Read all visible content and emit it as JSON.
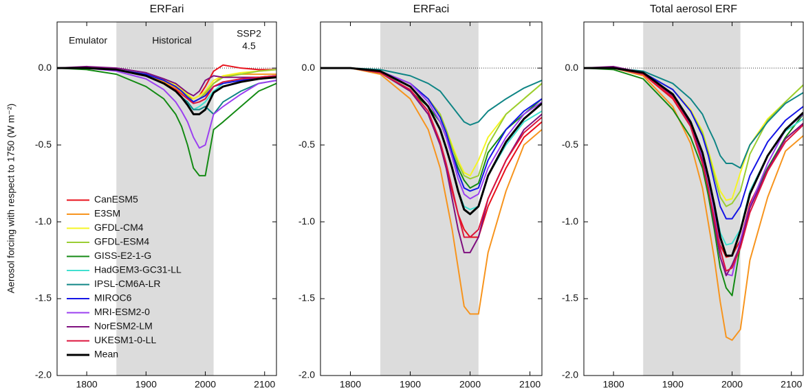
{
  "ylabel": "Aerosol forcing with respect to 1750 (W m⁻²)",
  "chart_data": [
    {
      "type": "line",
      "title": "ERFari",
      "legend": "lower left",
      "annotations": [
        "Emulator",
        "Historical",
        [
          "SSP2",
          "4.5"
        ]
      ],
      "shade": [
        1850,
        2014
      ],
      "xlim": [
        1750,
        2120
      ],
      "ylim": [
        -2.0,
        0.3
      ],
      "xticks": [
        1800,
        1900,
        2000,
        2100
      ],
      "yticks": [
        {
          "value": 0,
          "label": "0.0"
        },
        -0.5,
        {
          "value": -1,
          "label": "-1.0"
        },
        -1.5,
        {
          "value": -2,
          "label": "-2.0"
        }
      ],
      "x": [
        1750,
        1800,
        1850,
        1900,
        1930,
        1950,
        1960,
        1970,
        1980,
        1990,
        2000,
        2014,
        2030,
        2060,
        2090,
        2120
      ],
      "series": [
        {
          "name": "CanESM5",
          "color": "#e8111b",
          "values": [
            0,
            0,
            -0.01,
            -0.05,
            -0.08,
            -0.12,
            -0.15,
            -0.18,
            -0.2,
            -0.18,
            -0.12,
            -0.02,
            0.02,
            0,
            -0.01,
            -0.01
          ]
        },
        {
          "name": "E3SM",
          "color": "#f7941d",
          "values": [
            0,
            0,
            -0.01,
            -0.05,
            -0.09,
            -0.13,
            -0.16,
            -0.19,
            -0.22,
            -0.2,
            -0.17,
            -0.1,
            -0.05,
            -0.04,
            -0.04,
            -0.04
          ]
        },
        {
          "name": "GFDL-CM4",
          "color": "#f5f523",
          "values": [
            0,
            0,
            -0.01,
            -0.04,
            -0.07,
            -0.11,
            -0.14,
            -0.17,
            -0.2,
            -0.18,
            -0.15,
            -0.08,
            -0.05,
            -0.03,
            -0.02,
            -0.01
          ]
        },
        {
          "name": "GFDL-ESM4",
          "color": "#9acd32",
          "values": [
            0,
            0,
            -0.01,
            -0.04,
            -0.08,
            -0.12,
            -0.15,
            -0.18,
            -0.22,
            -0.2,
            -0.16,
            -0.1,
            -0.06,
            -0.04,
            -0.02,
            -0.01
          ]
        },
        {
          "name": "GISS-E2-1-G",
          "color": "#138a13",
          "values": [
            0,
            -0.01,
            -0.04,
            -0.12,
            -0.2,
            -0.3,
            -0.38,
            -0.5,
            -0.65,
            -0.7,
            -0.7,
            -0.4,
            -0.35,
            -0.25,
            -0.15,
            -0.1
          ]
        },
        {
          "name": "HadGEM3-GC31-LL",
          "color": "#40e0d0",
          "values": [
            0,
            0,
            -0.01,
            -0.05,
            -0.1,
            -0.15,
            -0.19,
            -0.23,
            -0.27,
            -0.25,
            -0.22,
            -0.15,
            -0.1,
            -0.07,
            -0.06,
            -0.05
          ]
        },
        {
          "name": "IPSL-CM6A-LR",
          "color": "#0f8585",
          "values": [
            0,
            0,
            -0.01,
            -0.05,
            -0.1,
            -0.15,
            -0.19,
            -0.22,
            -0.27,
            -0.27,
            -0.25,
            -0.3,
            -0.22,
            -0.15,
            -0.1,
            -0.08
          ]
        },
        {
          "name": "MIROC6",
          "color": "#1414e6",
          "values": [
            0,
            0,
            -0.01,
            -0.04,
            -0.08,
            -0.12,
            -0.15,
            -0.19,
            -0.22,
            -0.2,
            -0.18,
            -0.12,
            -0.1,
            -0.08,
            -0.06,
            -0.05
          ]
        },
        {
          "name": "MRI-ESM2-0",
          "color": "#9b3ff0",
          "values": [
            0,
            0,
            -0.02,
            -0.07,
            -0.14,
            -0.22,
            -0.28,
            -0.35,
            -0.45,
            -0.52,
            -0.5,
            -0.3,
            -0.25,
            -0.17,
            -0.1,
            -0.08
          ]
        },
        {
          "name": "NorESM2-LM",
          "color": "#7f0f7f",
          "values": [
            0,
            0.01,
            0,
            -0.03,
            -0.07,
            -0.1,
            -0.13,
            -0.16,
            -0.18,
            -0.15,
            -0.08,
            -0.05,
            -0.06,
            -0.06,
            -0.06,
            -0.06
          ]
        },
        {
          "name": "UKESM1-0-LL",
          "color": "#dc143c",
          "values": [
            0,
            0,
            -0.01,
            -0.05,
            -0.1,
            -0.14,
            -0.17,
            -0.2,
            -0.23,
            -0.22,
            -0.2,
            -0.12,
            -0.09,
            -0.07,
            -0.06,
            -0.05
          ]
        },
        {
          "name": "Mean",
          "color": "#000000",
          "values": [
            0,
            0,
            -0.01,
            -0.05,
            -0.1,
            -0.15,
            -0.19,
            -0.24,
            -0.3,
            -0.3,
            -0.27,
            -0.16,
            -0.12,
            -0.09,
            -0.07,
            -0.06
          ]
        }
      ]
    },
    {
      "type": "line",
      "title": "ERFaci",
      "shade": [
        1850,
        2014
      ],
      "xlim": [
        1750,
        2120
      ],
      "ylim": [
        -2.0,
        0.3
      ],
      "xticks": [
        1800,
        1900,
        2000,
        2100
      ],
      "yticks": [
        {
          "value": 0,
          "label": "0.0"
        },
        -0.5,
        {
          "value": -1,
          "label": "-1.0"
        },
        -1.5,
        {
          "value": -2,
          "label": "-2.0"
        }
      ],
      "x": [
        1750,
        1800,
        1850,
        1900,
        1930,
        1950,
        1960,
        1970,
        1980,
        1990,
        2000,
        2014,
        2030,
        2060,
        2090,
        2120
      ],
      "series": [
        {
          "name": "CanESM5",
          "color": "#e8111b",
          "values": [
            0,
            0,
            -0.03,
            -0.15,
            -0.3,
            -0.5,
            -0.65,
            -0.8,
            -0.95,
            -1.05,
            -1.1,
            -1.1,
            -0.9,
            -0.65,
            -0.45,
            -0.35
          ]
        },
        {
          "name": "E3SM",
          "color": "#f7941d",
          "values": [
            0,
            0,
            -0.04,
            -0.2,
            -0.4,
            -0.65,
            -0.85,
            -1.05,
            -1.3,
            -1.55,
            -1.6,
            -1.6,
            -1.2,
            -0.8,
            -0.5,
            -0.4
          ]
        },
        {
          "name": "GFDL-CM4",
          "color": "#f5f523",
          "values": [
            0,
            0,
            -0.02,
            -0.1,
            -0.2,
            -0.3,
            -0.4,
            -0.5,
            -0.6,
            -0.68,
            -0.7,
            -0.6,
            -0.45,
            -0.3,
            -0.2,
            -0.1
          ]
        },
        {
          "name": "GFDL-ESM4",
          "color": "#9acd32",
          "values": [
            0,
            0,
            -0.02,
            -0.1,
            -0.2,
            -0.3,
            -0.4,
            -0.52,
            -0.62,
            -0.7,
            -0.72,
            -0.7,
            -0.5,
            -0.3,
            -0.2,
            -0.1
          ]
        },
        {
          "name": "GISS-E2-1-G",
          "color": "#138a13",
          "values": [
            0,
            0,
            -0.03,
            -0.15,
            -0.25,
            -0.35,
            -0.45,
            -0.55,
            -0.65,
            -0.73,
            -0.78,
            -0.75,
            -0.55,
            -0.4,
            -0.3,
            -0.2
          ]
        },
        {
          "name": "HadGEM3-GC31-LL",
          "color": "#40e0d0",
          "values": [
            0,
            0,
            -0.03,
            -0.12,
            -0.25,
            -0.4,
            -0.52,
            -0.65,
            -0.8,
            -0.9,
            -0.92,
            -0.9,
            -0.7,
            -0.5,
            -0.35,
            -0.28
          ]
        },
        {
          "name": "IPSL-CM6A-LR",
          "color": "#0f8585",
          "values": [
            0,
            0,
            -0.01,
            -0.05,
            -0.1,
            -0.15,
            -0.2,
            -0.25,
            -0.3,
            -0.35,
            -0.37,
            -0.35,
            -0.28,
            -0.2,
            -0.13,
            -0.08
          ]
        },
        {
          "name": "MIROC6",
          "color": "#1414e6",
          "values": [
            0,
            0,
            -0.02,
            -0.1,
            -0.2,
            -0.32,
            -0.42,
            -0.55,
            -0.68,
            -0.78,
            -0.8,
            -0.78,
            -0.6,
            -0.4,
            -0.28,
            -0.2
          ]
        },
        {
          "name": "MRI-ESM2-0",
          "color": "#9b3ff0",
          "values": [
            0,
            0,
            -0.02,
            -0.1,
            -0.22,
            -0.35,
            -0.45,
            -0.58,
            -0.72,
            -0.82,
            -0.85,
            -0.82,
            -0.65,
            -0.45,
            -0.3,
            -0.22
          ]
        },
        {
          "name": "NorESM2-LM",
          "color": "#7f0f7f",
          "values": [
            0,
            0,
            -0.03,
            -0.15,
            -0.3,
            -0.5,
            -0.65,
            -0.85,
            -1.05,
            -1.2,
            -1.2,
            -1.1,
            -0.85,
            -0.6,
            -0.4,
            -0.3
          ]
        },
        {
          "name": "UKESM1-0-LL",
          "color": "#dc143c",
          "values": [
            0,
            0,
            -0.03,
            -0.14,
            -0.28,
            -0.48,
            -0.62,
            -0.78,
            -0.95,
            -1.1,
            -1.1,
            -1.05,
            -0.85,
            -0.6,
            -0.42,
            -0.32
          ]
        },
        {
          "name": "Mean",
          "color": "#000000",
          "values": [
            0,
            0,
            -0.02,
            -0.12,
            -0.25,
            -0.4,
            -0.52,
            -0.65,
            -0.8,
            -0.92,
            -0.95,
            -0.9,
            -0.7,
            -0.48,
            -0.33,
            -0.23
          ]
        }
      ]
    },
    {
      "type": "line",
      "title": "Total aerosol ERF",
      "shade": [
        1850,
        2014
      ],
      "xlim": [
        1750,
        2120
      ],
      "ylim": [
        -2.0,
        0.3
      ],
      "xticks": [
        1800,
        1900,
        2000,
        2100
      ],
      "yticks": [
        {
          "value": 0,
          "label": "0.0"
        },
        -0.5,
        {
          "value": -1,
          "label": "-1.0"
        },
        -1.5,
        {
          "value": -2,
          "label": "-2.0"
        }
      ],
      "x": [
        1750,
        1800,
        1850,
        1900,
        1930,
        1950,
        1960,
        1970,
        1980,
        1990,
        2000,
        2014,
        2030,
        2060,
        2090,
        2120
      ],
      "series": [
        {
          "name": "CanESM5",
          "color": "#e8111b",
          "values": [
            0,
            0,
            -0.04,
            -0.2,
            -0.38,
            -0.62,
            -0.8,
            -0.98,
            -1.15,
            -1.23,
            -1.22,
            -1.12,
            -0.88,
            -0.65,
            -0.46,
            -0.36
          ]
        },
        {
          "name": "E3SM",
          "color": "#f7941d",
          "values": [
            0,
            0,
            -0.05,
            -0.25,
            -0.49,
            -0.78,
            -1.01,
            -1.24,
            -1.52,
            -1.75,
            -1.77,
            -1.7,
            -1.25,
            -0.84,
            -0.54,
            -0.44
          ]
        },
        {
          "name": "GFDL-CM4",
          "color": "#f5f523",
          "values": [
            0,
            0,
            -0.03,
            -0.14,
            -0.27,
            -0.41,
            -0.54,
            -0.67,
            -0.8,
            -0.86,
            -0.85,
            -0.68,
            -0.5,
            -0.33,
            -0.22,
            -0.11
          ]
        },
        {
          "name": "GFDL-ESM4",
          "color": "#9acd32",
          "values": [
            0,
            0,
            -0.03,
            -0.14,
            -0.28,
            -0.42,
            -0.55,
            -0.7,
            -0.84,
            -0.9,
            -0.88,
            -0.8,
            -0.56,
            -0.34,
            -0.22,
            -0.11
          ]
        },
        {
          "name": "GISS-E2-1-G",
          "color": "#138a13",
          "values": [
            0,
            -0.01,
            -0.07,
            -0.27,
            -0.45,
            -0.65,
            -0.83,
            -1.05,
            -1.3,
            -1.43,
            -1.48,
            -1.15,
            -0.9,
            -0.65,
            -0.45,
            -0.3
          ]
        },
        {
          "name": "HadGEM3-GC31-LL",
          "color": "#40e0d0",
          "values": [
            0,
            0,
            -0.04,
            -0.17,
            -0.35,
            -0.55,
            -0.71,
            -0.88,
            -1.07,
            -1.15,
            -1.14,
            -1.05,
            -0.8,
            -0.57,
            -0.41,
            -0.33
          ]
        },
        {
          "name": "IPSL-CM6A-LR",
          "color": "#0f8585",
          "values": [
            0,
            0,
            -0.02,
            -0.1,
            -0.2,
            -0.3,
            -0.39,
            -0.47,
            -0.57,
            -0.62,
            -0.62,
            -0.65,
            -0.5,
            -0.35,
            -0.23,
            -0.16
          ]
        },
        {
          "name": "MIROC6",
          "color": "#1414e6",
          "values": [
            0,
            0,
            -0.03,
            -0.14,
            -0.28,
            -0.44,
            -0.57,
            -0.74,
            -0.9,
            -0.98,
            -0.98,
            -0.9,
            -0.7,
            -0.48,
            -0.34,
            -0.25
          ]
        },
        {
          "name": "MRI-ESM2-0",
          "color": "#9b3ff0",
          "values": [
            0,
            0,
            -0.04,
            -0.17,
            -0.36,
            -0.57,
            -0.73,
            -0.93,
            -1.17,
            -1.34,
            -1.35,
            -1.12,
            -0.9,
            -0.62,
            -0.4,
            -0.3
          ]
        },
        {
          "name": "NorESM2-LM",
          "color": "#7f0f7f",
          "values": [
            0,
            0.01,
            -0.03,
            -0.18,
            -0.37,
            -0.6,
            -0.78,
            -1.01,
            -1.23,
            -1.35,
            -1.28,
            -1.15,
            -0.91,
            -0.66,
            -0.46,
            -0.36
          ]
        },
        {
          "name": "UKESM1-0-LL",
          "color": "#dc143c",
          "values": [
            0,
            0,
            -0.04,
            -0.19,
            -0.38,
            -0.62,
            -0.79,
            -0.98,
            -1.18,
            -1.32,
            -1.3,
            -1.17,
            -0.94,
            -0.67,
            -0.48,
            -0.37
          ]
        },
        {
          "name": "Mean",
          "color": "#000000",
          "values": [
            0,
            0,
            -0.03,
            -0.17,
            -0.35,
            -0.55,
            -0.71,
            -0.89,
            -1.1,
            -1.22,
            -1.22,
            -1.06,
            -0.82,
            -0.57,
            -0.4,
            -0.29
          ]
        }
      ]
    }
  ]
}
